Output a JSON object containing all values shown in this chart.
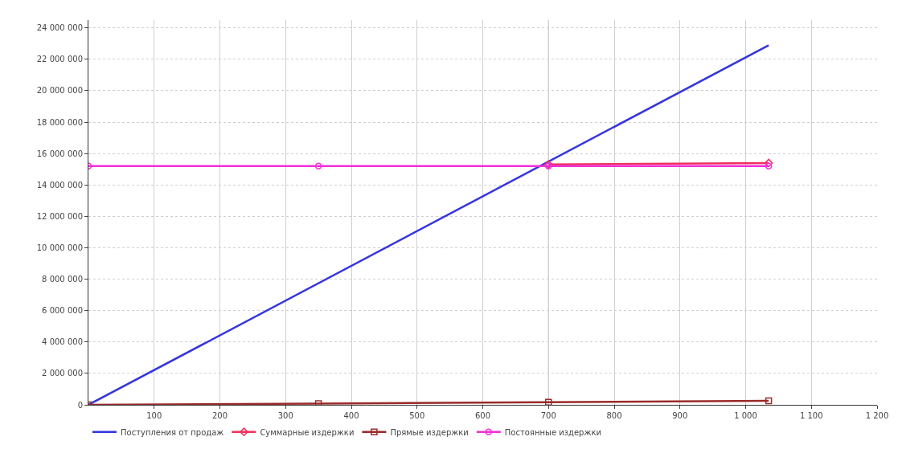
{
  "chart_data": {
    "type": "line",
    "series": [
      {
        "name": "Поступления от продаж",
        "color": "#3535e0",
        "x": [
          0,
          1035
        ],
        "values": [
          0,
          22900000
        ],
        "marker": "none"
      },
      {
        "name": "Суммарные издержки",
        "color": "#ef2f5f",
        "x": [
          700,
          1035
        ],
        "values": [
          15300000,
          15400000
        ],
        "marker": "diamond"
      },
      {
        "name": "Прямые издержки",
        "color": "#9c2a2a",
        "x": [
          0,
          350,
          700,
          1035
        ],
        "values": [
          0,
          80000,
          160000,
          250000
        ],
        "marker": "square"
      },
      {
        "name": "Постоянные издержки",
        "color": "#f030d8",
        "x": [
          0,
          350,
          700,
          1035
        ],
        "values": [
          15200000,
          15200000,
          15200000,
          15200000
        ],
        "marker": "circle"
      }
    ],
    "xlim": [
      0,
      1200
    ],
    "xticks": [
      {
        "value": 100,
        "label": "100"
      },
      {
        "value": 200,
        "label": "200"
      },
      {
        "value": 300,
        "label": "300"
      },
      {
        "value": 400,
        "label": "400"
      },
      {
        "value": 500,
        "label": "500"
      },
      {
        "value": 600,
        "label": "600"
      },
      {
        "value": 700,
        "label": "700"
      },
      {
        "value": 800,
        "label": "800"
      },
      {
        "value": 900,
        "label": "900"
      },
      {
        "value": 1000,
        "label": "1 000"
      },
      {
        "value": 1100,
        "label": "1 100"
      },
      {
        "value": 1200,
        "label": "1 200"
      }
    ],
    "ylim": [
      0,
      24500000
    ],
    "yticks": [
      0,
      {
        "value": 2000000,
        "label": "2 000 000"
      },
      {
        "value": 4000000,
        "label": "4 000 000"
      },
      {
        "value": 6000000,
        "label": "6 000 000"
      },
      {
        "value": 8000000,
        "label": "8 000 000"
      },
      {
        "value": 10000000,
        "label": "10 000 000"
      },
      {
        "value": 12000000,
        "label": "12 000 000"
      },
      {
        "value": 14000000,
        "label": "14 000 000"
      },
      {
        "value": 16000000,
        "label": "16 000 000"
      },
      {
        "value": 18000000,
        "label": "18 000 000"
      },
      {
        "value": 20000000,
        "label": "20 000 000"
      },
      {
        "value": 22000000,
        "label": "22 000 000"
      },
      {
        "value": 24000000,
        "label": "24 000 000"
      }
    ],
    "ref_lines": [
      {
        "axis": "x",
        "value": 700,
        "color": "#f090b0",
        "line_style": "solid"
      }
    ],
    "grid": true,
    "legend": "bottom"
  }
}
